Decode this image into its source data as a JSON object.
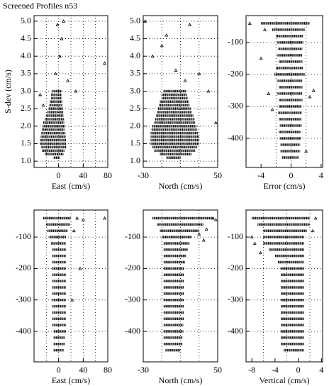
{
  "title": "Screened Profiles n53",
  "chart_data": [
    {
      "type": "scatter",
      "xlabel": "East (cm/s)",
      "ylabel": "S-dev (cm/s)",
      "xlim": [
        -40,
        80
      ],
      "xticks": [
        0,
        40,
        80
      ],
      "xgrid": [
        -20,
        0,
        20,
        40,
        60
      ],
      "ylim": [
        0.82,
        5.16
      ],
      "yticks": [
        {
          "value": 1,
          "label": "1.0"
        },
        {
          "value": 1.5,
          "label": "1.5"
        },
        {
          "value": 2,
          "label": "2.0"
        },
        {
          "value": 2.5,
          "label": "2.5"
        },
        {
          "value": 3,
          "label": "3.0"
        },
        {
          "value": 3.5,
          "label": "3.5"
        },
        {
          "value": 4,
          "label": "4.0"
        },
        {
          "value": 4.5,
          "label": "4.5"
        },
        {
          "value": 5,
          "label": "5.0"
        }
      ],
      "rows": {
        "y": [
          1.1,
          1.2,
          1.3,
          1.4,
          1.5,
          1.6,
          1.7,
          1.8,
          1.9,
          2.0,
          2.1,
          2.2,
          2.3,
          2.4,
          2.5,
          2.6,
          2.7,
          2.8,
          2.9,
          3.0
        ],
        "xlow": [
          -8,
          -22,
          -27,
          -28,
          -30,
          -30,
          -29,
          -28,
          -27,
          -26,
          -25,
          -22,
          -20,
          -18,
          -16,
          -15,
          -14,
          -12,
          -12,
          -10
        ],
        "xhigh": [
          2,
          8,
          10,
          12,
          12,
          12,
          12,
          11,
          10,
          10,
          9,
          9,
          8,
          8,
          7,
          6,
          6,
          5,
          5,
          5
        ]
      },
      "points": {
        "x": [
          -30,
          -5,
          2,
          5,
          -2,
          8,
          28,
          75,
          -25,
          15
        ],
        "y": [
          2.9,
          3.5,
          4.0,
          4.5,
          4.9,
          5.0,
          3.0,
          3.8,
          2.6,
          3.3
        ]
      }
    },
    {
      "type": "scatter",
      "xlabel": "North (cm/s)",
      "xlim": [
        -30,
        50
      ],
      "xticks": [
        -30,
        50
      ],
      "xgrid": [
        -10,
        10,
        30
      ],
      "ylim": [
        0.82,
        5.16
      ],
      "yticks": [
        {
          "value": 1,
          "label": "1.0"
        },
        {
          "value": 1.5,
          "label": "1.5"
        },
        {
          "value": 2,
          "label": "2.0"
        },
        {
          "value": 2.5,
          "label": "2.5"
        },
        {
          "value": 3,
          "label": "3.0"
        },
        {
          "value": 3.5,
          "label": "3.5"
        },
        {
          "value": 4,
          "label": "4.0"
        },
        {
          "value": 4.5,
          "label": "4.5"
        },
        {
          "value": 5,
          "label": "5.0"
        }
      ],
      "rows": {
        "y": [
          1.1,
          1.2,
          1.3,
          1.4,
          1.5,
          1.6,
          1.7,
          1.8,
          1.9,
          2.0,
          2.1,
          2.2,
          2.3,
          2.4,
          2.5,
          2.6,
          2.7,
          2.8,
          2.9,
          3.0
        ],
        "xlow": [
          -5,
          -12,
          -18,
          -20,
          -22,
          -22,
          -22,
          -22,
          -21,
          -20,
          -18,
          -17,
          -16,
          -15,
          -14,
          -13,
          -12,
          -10,
          -10,
          -8
        ],
        "xhigh": [
          10,
          22,
          26,
          28,
          30,
          30,
          30,
          29,
          28,
          27,
          26,
          25,
          24,
          22,
          21,
          20,
          19,
          18,
          17,
          16
        ]
      },
      "points": {
        "x": [
          -28,
          -20,
          -5,
          5,
          15,
          20,
          30,
          40,
          48,
          -10
        ],
        "y": [
          5.0,
          4.0,
          4.6,
          3.6,
          3.3,
          4.9,
          3.5,
          3.0,
          2.1,
          4.3
        ]
      }
    },
    {
      "type": "scatter",
      "xlabel": "Error (cm/s)",
      "xlim": [
        -6,
        4.2
      ],
      "xticks": [
        -4,
        0,
        4
      ],
      "xgrid": [
        -2,
        0,
        2
      ],
      "ylim": [
        -491,
        -16
      ],
      "yticks": [
        -100,
        -200,
        -300,
        -400
      ],
      "rows": {
        "y": [
          -40,
          -60,
          -80,
          -100,
          -120,
          -140,
          -160,
          -180,
          -200,
          -220,
          -240,
          -260,
          -280,
          -300,
          -320,
          -340,
          -360,
          -380,
          -400,
          -420,
          -440,
          -460
        ],
        "xlow": [
          -4,
          -2.5,
          -2,
          -1.8,
          -1.7,
          -1.8,
          -1.6,
          -2,
          -2.2,
          -1.8,
          -1.6,
          -1.8,
          -1.6,
          -1.6,
          -1.7,
          -1.6,
          -1.5,
          -1.6,
          -1.5,
          -1.4,
          -1.4,
          -1.2
        ],
        "xhigh": [
          2.5,
          1.8,
          1.6,
          1.6,
          1.5,
          1.5,
          1.5,
          1.6,
          1.8,
          1.5,
          1.5,
          1.5,
          1.5,
          1.4,
          1.4,
          1.4,
          1.4,
          1.3,
          1.3,
          1.2,
          1.2,
          1.0
        ]
      },
      "points": {
        "x": [
          -5.5,
          -3.5,
          -3,
          2.5,
          3,
          -2.5,
          2,
          -4
        ],
        "y": [
          -40,
          -60,
          -260,
          -270,
          -250,
          -310,
          -440,
          -150
        ]
      }
    },
    {
      "type": "scatter",
      "xlabel": "East (cm/s)",
      "xlim": [
        -40,
        80
      ],
      "xticks": [
        0,
        40,
        80
      ],
      "xgrid": [
        -20,
        0,
        20,
        40,
        60
      ],
      "ylim": [
        -497,
        -14
      ],
      "yticks": [
        -100,
        -200,
        -300,
        -400
      ],
      "rows": {
        "y": [
          -40,
          -60,
          -80,
          -100,
          -120,
          -140,
          -160,
          -180,
          -200,
          -220,
          -240,
          -260,
          -280,
          -300,
          -320,
          -340,
          -360,
          -380,
          -400,
          -420,
          -440,
          -460
        ],
        "xlow": [
          -25,
          -20,
          -18,
          -15,
          -12,
          -10,
          -10,
          -10,
          -10,
          -10,
          -10,
          -10,
          -10,
          -10,
          -10,
          -10,
          -10,
          -10,
          -8,
          -8,
          -8,
          -8
        ],
        "xhigh": [
          20,
          18,
          15,
          12,
          12,
          12,
          12,
          12,
          12,
          12,
          12,
          12,
          12,
          12,
          12,
          12,
          12,
          12,
          12,
          10,
          10,
          8
        ]
      },
      "points": {
        "x": [
          30,
          40,
          75,
          25,
          35,
          22
        ],
        "y": [
          -40,
          -45,
          -40,
          -80,
          -200,
          -300
        ]
      }
    },
    {
      "type": "scatter",
      "xlabel": "North (cm/s)",
      "xlim": [
        -30,
        50
      ],
      "xticks": [
        -30,
        50
      ],
      "xgrid": [
        -10,
        10,
        30
      ],
      "ylim": [
        -497,
        -14
      ],
      "yticks": [
        -100,
        -200,
        -300,
        -400
      ],
      "rows": {
        "y": [
          -40,
          -60,
          -80,
          -100,
          -120,
          -140,
          -160,
          -180,
          -200,
          -220,
          -240,
          -260,
          -280,
          -300,
          -320,
          -340,
          -360,
          -380,
          -400,
          -420,
          -440,
          -460
        ],
        "xlow": [
          -20,
          -15,
          -12,
          -10,
          -8,
          -8,
          -8,
          -8,
          -8,
          -8,
          -8,
          -8,
          -8,
          -8,
          -8,
          -8,
          -8,
          -8,
          -8,
          -8,
          -8,
          -6
        ],
        "xhigh": [
          45,
          35,
          30,
          22,
          20,
          18,
          16,
          15,
          14,
          14,
          14,
          14,
          14,
          14,
          14,
          14,
          14,
          13,
          13,
          12,
          12,
          10
        ]
      },
      "points": {
        "x": [
          45,
          48,
          30,
          38,
          35
        ],
        "y": [
          -40,
          -45,
          -90,
          -75,
          -110
        ]
      }
    },
    {
      "type": "scatter",
      "xlabel": "Vertical (cm/s)",
      "xlim": [
        -9,
        4.2
      ],
      "xticks": [
        -8,
        -4,
        0,
        4
      ],
      "xgrid": [
        -6,
        -2,
        2
      ],
      "ylim": [
        -497,
        -14
      ],
      "yticks": [
        -100,
        -200,
        -300,
        -400
      ],
      "rows": {
        "y": [
          -40,
          -60,
          -80,
          -100,
          -120,
          -140,
          -160,
          -180,
          -200,
          -220,
          -240,
          -260,
          -280,
          -300,
          -320,
          -340,
          -360,
          -380,
          -400,
          -420,
          -440,
          -460
        ],
        "xlow": [
          -8,
          -7,
          -6,
          -6,
          -6,
          -5,
          -4,
          -3.5,
          -3,
          -3,
          -3,
          -3,
          -3,
          -3,
          -3,
          -3,
          -3,
          -3,
          -3,
          -3,
          -3,
          -2.5
        ],
        "xhigh": [
          2,
          2,
          1.5,
          1,
          1,
          1,
          1,
          1,
          1,
          1,
          1,
          1,
          1,
          1,
          1,
          1,
          1,
          1,
          1,
          1,
          1,
          1
        ]
      },
      "points": {
        "x": [
          -7.5,
          -6.5,
          3,
          2.5,
          -8
        ],
        "y": [
          -120,
          -150,
          -40,
          -80,
          -100
        ]
      }
    }
  ]
}
